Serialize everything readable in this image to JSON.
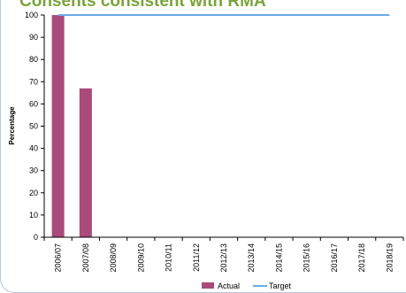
{
  "chart_data": {
    "type": "bar",
    "title": "Consents consistent with RMA",
    "xlabel": "",
    "ylabel": "Percentage",
    "ylim": [
      0,
      100
    ],
    "yticks": [
      0,
      10,
      20,
      30,
      40,
      50,
      60,
      70,
      80,
      90,
      100
    ],
    "categories": [
      "2006/07",
      "2007/08",
      "2008/09",
      "2009/10",
      "2010/11",
      "2011/12",
      "2012/13",
      "2013/14",
      "2014/15",
      "2015/16",
      "2016/17",
      "2017/18",
      "2018/19"
    ],
    "series": [
      {
        "name": "Actual",
        "kind": "bar",
        "color": "#aa4a7a",
        "values": [
          100,
          67,
          null,
          null,
          null,
          null,
          null,
          null,
          null,
          null,
          null,
          null,
          null
        ]
      },
      {
        "name": "Target",
        "kind": "line",
        "color": "#6cabe8",
        "values": [
          100,
          100,
          100,
          100,
          100,
          100,
          100,
          100,
          100,
          100,
          100,
          100,
          100
        ]
      }
    ],
    "grid": false,
    "legend": "bottom-center"
  }
}
